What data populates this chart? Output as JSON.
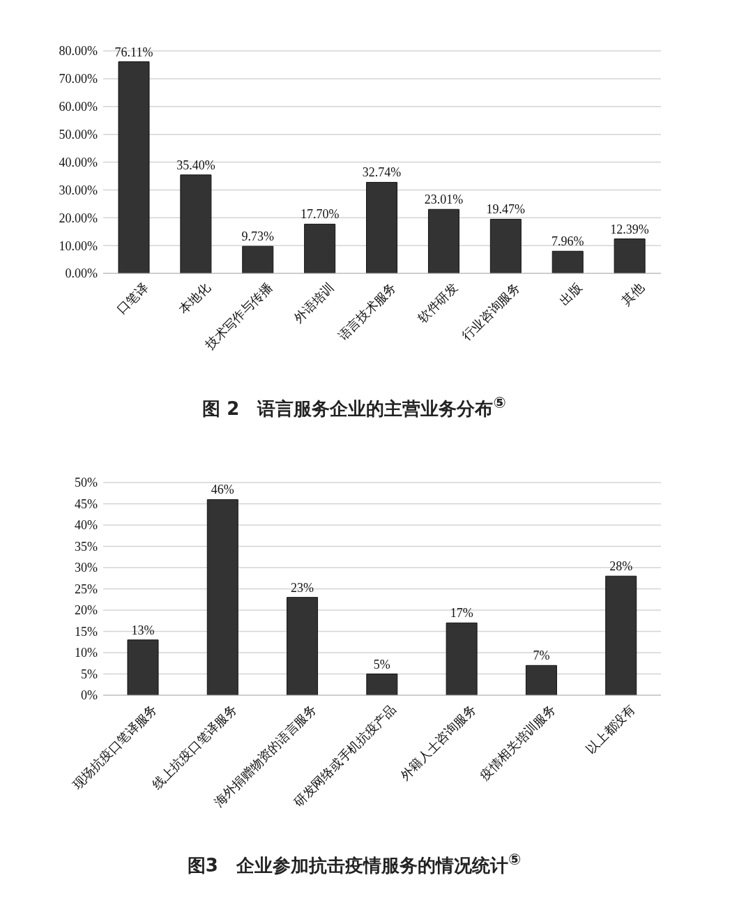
{
  "chart_data": [
    {
      "type": "bar",
      "title": "图 2　语言服务企业的主营业务分布$^{⑤}$",
      "categories": [
        "口笔译",
        "本地化",
        "技术写作与传播",
        "外语培训",
        "语言技术服务",
        "软件研发",
        "行业咨询服务",
        "出版",
        "其他"
      ],
      "values": [
        76.11,
        35.4,
        9.73,
        17.7,
        32.74,
        23.01,
        19.47,
        7.96,
        12.39
      ],
      "value_labels": [
        "76.11%",
        "35.40%",
        "9.73%",
        "17.70%",
        "32.74%",
        "23.01%",
        "19.47%",
        "7.96%",
        "12.39%"
      ],
      "color": "#333333",
      "ylim": [
        0,
        80
      ],
      "yticks": [
        {
          "value": 0,
          "label": "0.00%"
        },
        {
          "value": 10,
          "label": "10.00%"
        },
        {
          "value": 20,
          "label": "20.00%"
        },
        {
          "value": 30,
          "label": "30.00%"
        },
        {
          "value": 40,
          "label": "40.00%"
        },
        {
          "value": 50,
          "label": "50.00%"
        },
        {
          "value": 60,
          "label": "60.00%"
        },
        {
          "value": 70,
          "label": "70.00%"
        },
        {
          "value": 80,
          "label": "80.00%"
        }
      ],
      "grid": "y"
    },
    {
      "type": "bar",
      "title": "图3　企业参加抗击疫情服务的情况统计$^{⑤}$",
      "categories": [
        "现场抗疫口笔译服务",
        "线上抗疫口笔译服务",
        "海外捐赠物资的语言服务",
        "研发网络或手机抗疫产品",
        "外籍人士咨询服务",
        "疫情相关培训服务",
        "以上都没有"
      ],
      "values": [
        13,
        46,
        23,
        5,
        17,
        7,
        28
      ],
      "value_labels": [
        "13%",
        "46%",
        "23%",
        "5%",
        "17%",
        "7%",
        "28%"
      ],
      "color": "#333333",
      "ylim": [
        0,
        50
      ],
      "yticks": [
        {
          "value": 0,
          "label": "0%"
        },
        {
          "value": 5,
          "label": "5%"
        },
        {
          "value": 10,
          "label": "10%"
        },
        {
          "value": 15,
          "label": "15%"
        },
        {
          "value": 20,
          "label": "20%"
        },
        {
          "value": 25,
          "label": "25%"
        },
        {
          "value": 30,
          "label": "30%"
        },
        {
          "value": 35,
          "label": "35%"
        },
        {
          "value": 40,
          "label": "40%"
        },
        {
          "value": 45,
          "label": "45%"
        },
        {
          "value": 50,
          "label": "50%"
        }
      ],
      "grid": "y"
    }
  ]
}
